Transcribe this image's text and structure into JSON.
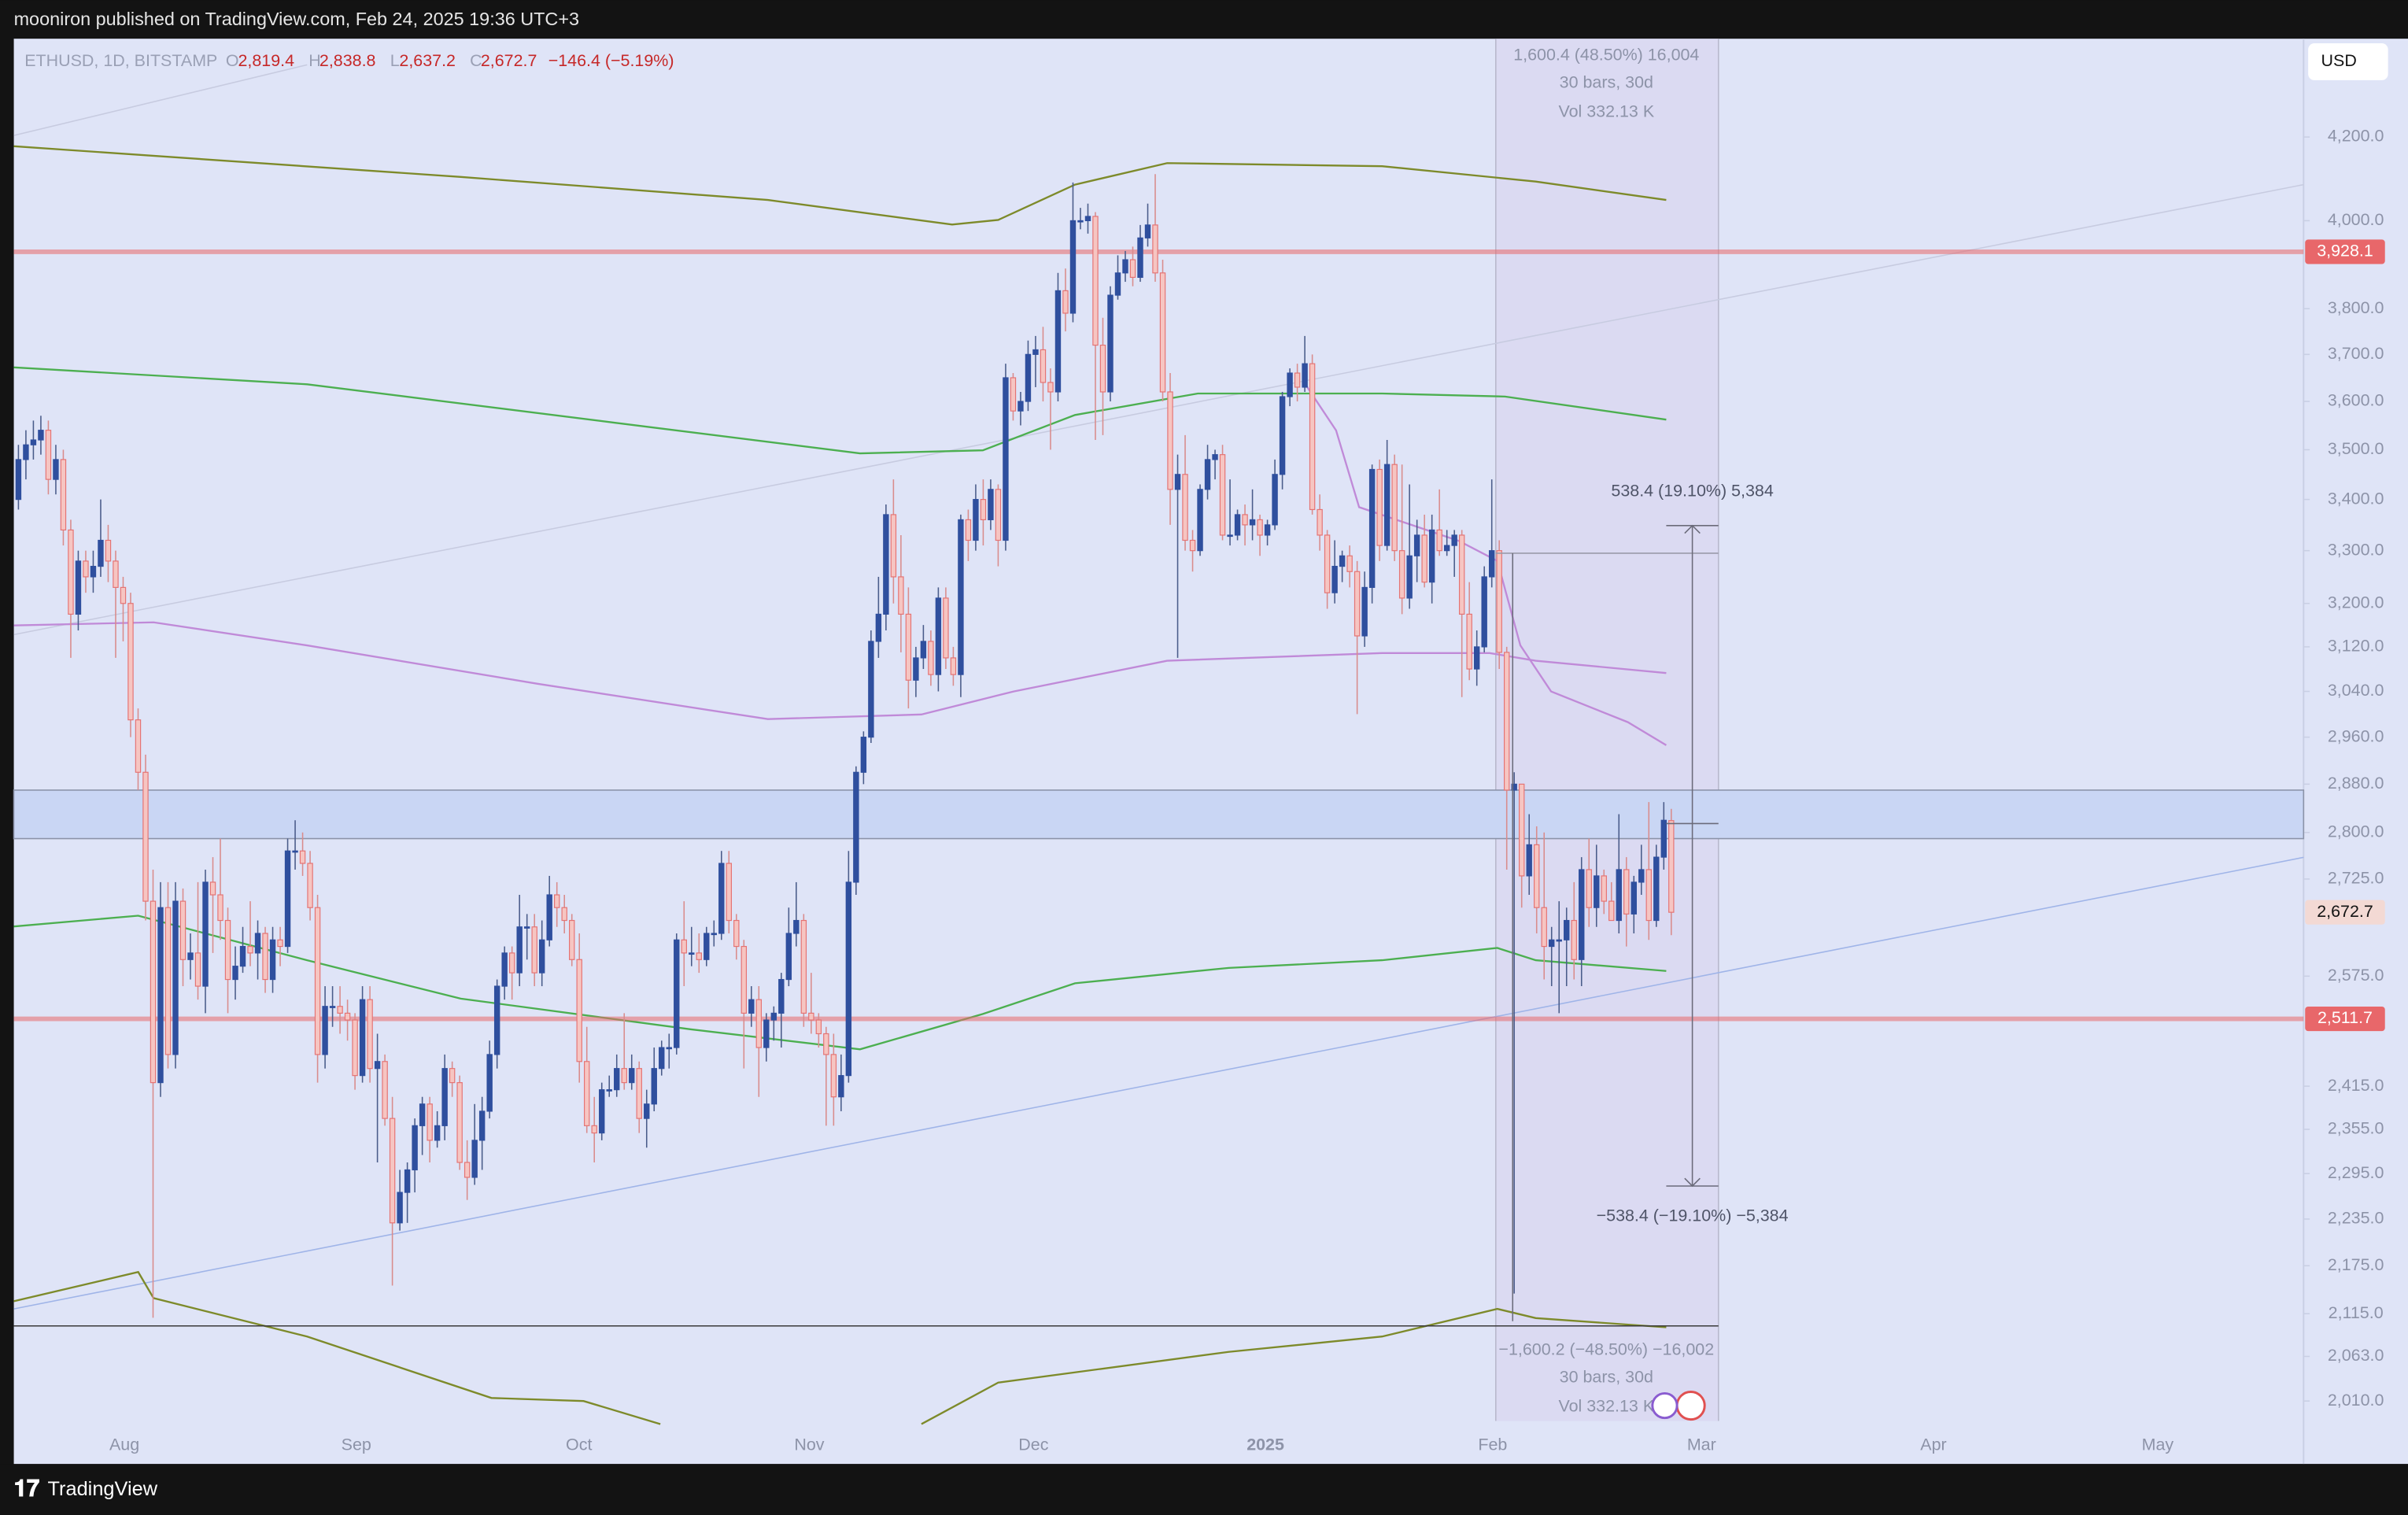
{
  "header": {
    "title": "mooniron published on TradingView.com, Feb 24, 2025 19:36 UTC+3"
  },
  "legend": {
    "symbol": "ETHUSD, 1D, BITSTAMP",
    "o_label": "O",
    "open": "2,819.4",
    "h_label": "H",
    "high": "2,838.8",
    "l_label": "L",
    "low": "2,637.2",
    "c_label": "C",
    "close": "2,672.7",
    "change": "−146.4 (−5.19%)"
  },
  "currency_button": "USD",
  "price_axis": {
    "ticks": [
      {
        "value": 4200,
        "label": "4,200.0"
      },
      {
        "value": 4000,
        "label": "4,000.0"
      },
      {
        "value": 3800,
        "label": "3,800.0"
      },
      {
        "value": 3700,
        "label": "3,700.0"
      },
      {
        "value": 3600,
        "label": "3,600.0"
      },
      {
        "value": 3500,
        "label": "3,500.0"
      },
      {
        "value": 3400,
        "label": "3,400.0"
      },
      {
        "value": 3300,
        "label": "3,300.0"
      },
      {
        "value": 3200,
        "label": "3,200.0"
      },
      {
        "value": 3120,
        "label": "3,120.0"
      },
      {
        "value": 3040,
        "label": "3,040.0"
      },
      {
        "value": 2960,
        "label": "2,960.0"
      },
      {
        "value": 2880,
        "label": "2,880.0"
      },
      {
        "value": 2800,
        "label": "2,800.0"
      },
      {
        "value": 2725,
        "label": "2,725.0"
      },
      {
        "value": 2575,
        "label": "2,575.0"
      },
      {
        "value": 2415,
        "label": "2,415.0"
      },
      {
        "value": 2355,
        "label": "2,355.0"
      },
      {
        "value": 2295,
        "label": "2,295.0"
      },
      {
        "value": 2235,
        "label": "2,235.0"
      },
      {
        "value": 2175,
        "label": "2,175.0"
      },
      {
        "value": 2115,
        "label": "2,115.0"
      },
      {
        "value": 2063,
        "label": "2,063.0"
      },
      {
        "value": 2010,
        "label": "2,010.0"
      }
    ],
    "badges": [
      {
        "value": 3928.1,
        "label": "3,928.1",
        "color": "#e8676a"
      },
      {
        "value": 2672.7,
        "label": "2,672.7",
        "color": "#f3d9d4"
      },
      {
        "value": 2511.7,
        "label": "2,511.7",
        "color": "#e8676a"
      }
    ]
  },
  "zone": [
    2870,
    2790
  ],
  "base_line": 2100,
  "time_axis": {
    "labels": [
      "Aug",
      "Sep",
      "Oct",
      "Nov",
      "Dec",
      "2025",
      "Feb",
      "Mar",
      "Apr",
      "May"
    ]
  },
  "annotations": {
    "top_range": "1,600.4 (48.50%) 16,004",
    "top_bars": "30 bars, 30d",
    "top_vol": "Vol 332.13 K",
    "up_move": "538.4 (19.10%) 5,384",
    "down_move": "−538.4 (−19.10%) −5,384",
    "bottom_range": "−1,600.2 (−48.50%) −16,002",
    "bottom_bars": "30 bars, 30d",
    "bottom_vol": "Vol 332.13 K"
  },
  "footer": {
    "brand": "TradingView"
  },
  "candles": [
    [
      3400,
      3510,
      3380,
      3480
    ],
    [
      3480,
      3540,
      3440,
      3510
    ],
    [
      3510,
      3560,
      3480,
      3520
    ],
    [
      3520,
      3570,
      3490,
      3540
    ],
    [
      3540,
      3560,
      3410,
      3440
    ],
    [
      3440,
      3510,
      3410,
      3480
    ],
    [
      3480,
      3500,
      3310,
      3340
    ],
    [
      3340,
      3360,
      3100,
      3180
    ],
    [
      3180,
      3300,
      3150,
      3280
    ],
    [
      3280,
      3300,
      3220,
      3250
    ],
    [
      3250,
      3300,
      3220,
      3270
    ],
    [
      3270,
      3400,
      3250,
      3320
    ],
    [
      3320,
      3350,
      3240,
      3280
    ],
    [
      3280,
      3300,
      3100,
      3230
    ],
    [
      3230,
      3250,
      3130,
      3200
    ],
    [
      3200,
      3220,
      2960,
      2990
    ],
    [
      2990,
      3010,
      2870,
      2900
    ],
    [
      2900,
      2930,
      2660,
      2690
    ],
    [
      2690,
      2740,
      2110,
      2420
    ],
    [
      2420,
      2720,
      2400,
      2680
    ],
    [
      2680,
      2720,
      2440,
      2460
    ],
    [
      2460,
      2720,
      2440,
      2690
    ],
    [
      2690,
      2710,
      2560,
      2600
    ],
    [
      2600,
      2640,
      2570,
      2610
    ],
    [
      2610,
      2720,
      2540,
      2560
    ],
    [
      2560,
      2740,
      2520,
      2720
    ],
    [
      2720,
      2760,
      2610,
      2700
    ],
    [
      2700,
      2790,
      2630,
      2660
    ],
    [
      2660,
      2680,
      2520,
      2570
    ],
    [
      2570,
      2620,
      2540,
      2590
    ],
    [
      2590,
      2650,
      2580,
      2620
    ],
    [
      2620,
      2690,
      2590,
      2610
    ],
    [
      2610,
      2660,
      2570,
      2640
    ],
    [
      2640,
      2650,
      2550,
      2570
    ],
    [
      2570,
      2650,
      2550,
      2630
    ],
    [
      2630,
      2650,
      2590,
      2620
    ],
    [
      2620,
      2790,
      2610,
      2770
    ],
    [
      2770,
      2820,
      2740,
      2770
    ],
    [
      2770,
      2800,
      2730,
      2750
    ],
    [
      2750,
      2770,
      2660,
      2680
    ],
    [
      2680,
      2700,
      2420,
      2460
    ],
    [
      2460,
      2560,
      2440,
      2530
    ],
    [
      2530,
      2560,
      2500,
      2530
    ],
    [
      2530,
      2560,
      2490,
      2520
    ],
    [
      2520,
      2540,
      2480,
      2510
    ],
    [
      2510,
      2520,
      2410,
      2430
    ],
    [
      2430,
      2560,
      2420,
      2540
    ],
    [
      2540,
      2560,
      2420,
      2440
    ],
    [
      2440,
      2490,
      2310,
      2450
    ],
    [
      2450,
      2460,
      2360,
      2370
    ],
    [
      2370,
      2400,
      2150,
      2230
    ],
    [
      2230,
      2300,
      2220,
      2270
    ],
    [
      2270,
      2310,
      2230,
      2300
    ],
    [
      2300,
      2370,
      2270,
      2360
    ],
    [
      2360,
      2400,
      2320,
      2390
    ],
    [
      2390,
      2400,
      2310,
      2340
    ],
    [
      2340,
      2380,
      2330,
      2360
    ],
    [
      2360,
      2460,
      2340,
      2440
    ],
    [
      2440,
      2450,
      2400,
      2420
    ],
    [
      2420,
      2430,
      2300,
      2310
    ],
    [
      2310,
      2340,
      2260,
      2290
    ],
    [
      2290,
      2390,
      2280,
      2340
    ],
    [
      2340,
      2400,
      2300,
      2380
    ],
    [
      2380,
      2480,
      2370,
      2460
    ],
    [
      2460,
      2570,
      2440,
      2560
    ],
    [
      2560,
      2620,
      2540,
      2610
    ],
    [
      2610,
      2620,
      2540,
      2580
    ],
    [
      2580,
      2700,
      2560,
      2650
    ],
    [
      2650,
      2670,
      2600,
      2650
    ],
    [
      2650,
      2670,
      2560,
      2580
    ],
    [
      2580,
      2660,
      2560,
      2630
    ],
    [
      2630,
      2730,
      2620,
      2700
    ],
    [
      2700,
      2720,
      2650,
      2680
    ],
    [
      2680,
      2700,
      2640,
      2660
    ],
    [
      2660,
      2670,
      2590,
      2600
    ],
    [
      2600,
      2640,
      2420,
      2450
    ],
    [
      2450,
      2500,
      2350,
      2360
    ],
    [
      2360,
      2400,
      2310,
      2350
    ],
    [
      2350,
      2420,
      2340,
      2410
    ],
    [
      2410,
      2430,
      2400,
      2410
    ],
    [
      2410,
      2460,
      2400,
      2440
    ],
    [
      2440,
      2520,
      2410,
      2420
    ],
    [
      2420,
      2460,
      2410,
      2440
    ],
    [
      2440,
      2450,
      2350,
      2370
    ],
    [
      2370,
      2410,
      2330,
      2390
    ],
    [
      2390,
      2470,
      2380,
      2440
    ],
    [
      2440,
      2480,
      2430,
      2470
    ],
    [
      2470,
      2490,
      2440,
      2470
    ],
    [
      2470,
      2640,
      2460,
      2630
    ],
    [
      2630,
      2690,
      2560,
      2610
    ],
    [
      2610,
      2650,
      2590,
      2610
    ],
    [
      2610,
      2640,
      2580,
      2600
    ],
    [
      2600,
      2650,
      2590,
      2640
    ],
    [
      2640,
      2660,
      2620,
      2640
    ],
    [
      2640,
      2770,
      2630,
      2750
    ],
    [
      2750,
      2770,
      2640,
      2660
    ],
    [
      2660,
      2670,
      2600,
      2620
    ],
    [
      2620,
      2630,
      2440,
      2520
    ],
    [
      2520,
      2560,
      2500,
      2540
    ],
    [
      2540,
      2560,
      2400,
      2470
    ],
    [
      2470,
      2520,
      2450,
      2510
    ],
    [
      2510,
      2530,
      2480,
      2520
    ],
    [
      2520,
      2580,
      2470,
      2570
    ],
    [
      2570,
      2680,
      2560,
      2640
    ],
    [
      2640,
      2720,
      2620,
      2660
    ],
    [
      2660,
      2670,
      2500,
      2520
    ],
    [
      2520,
      2580,
      2490,
      2510
    ],
    [
      2510,
      2520,
      2470,
      2490
    ],
    [
      2490,
      2500,
      2360,
      2460
    ],
    [
      2460,
      2490,
      2360,
      2400
    ],
    [
      2400,
      2460,
      2380,
      2430
    ],
    [
      2430,
      2770,
      2420,
      2720
    ],
    [
      2720,
      2910,
      2700,
      2900
    ],
    [
      2900,
      2970,
      2880,
      2960
    ],
    [
      2960,
      3150,
      2950,
      3130
    ],
    [
      3130,
      3250,
      3100,
      3180
    ],
    [
      3180,
      3390,
      3150,
      3370
    ],
    [
      3370,
      3440,
      3200,
      3250
    ],
    [
      3250,
      3330,
      3110,
      3180
    ],
    [
      3180,
      3230,
      3010,
      3060
    ],
    [
      3060,
      3120,
      3030,
      3100
    ],
    [
      3100,
      3160,
      3080,
      3130
    ],
    [
      3130,
      3150,
      3050,
      3070
    ],
    [
      3070,
      3230,
      3040,
      3210
    ],
    [
      3210,
      3230,
      3080,
      3100
    ],
    [
      3100,
      3120,
      3050,
      3070
    ],
    [
      3070,
      3370,
      3030,
      3360
    ],
    [
      3360,
      3380,
      3280,
      3320
    ],
    [
      3320,
      3430,
      3300,
      3400
    ],
    [
      3400,
      3440,
      3310,
      3360
    ],
    [
      3360,
      3440,
      3340,
      3420
    ],
    [
      3420,
      3430,
      3270,
      3320
    ],
    [
      3320,
      3680,
      3300,
      3650
    ],
    [
      3650,
      3660,
      3560,
      3580
    ],
    [
      3580,
      3620,
      3550,
      3600
    ],
    [
      3600,
      3730,
      3580,
      3700
    ],
    [
      3700,
      3740,
      3630,
      3710
    ],
    [
      3710,
      3760,
      3600,
      3640
    ],
    [
      3640,
      3670,
      3500,
      3620
    ],
    [
      3620,
      3880,
      3600,
      3840
    ],
    [
      3840,
      3890,
      3750,
      3790
    ],
    [
      3790,
      4090,
      3770,
      4000
    ],
    [
      4000,
      4030,
      3980,
      4000
    ],
    [
      4000,
      4040,
      3970,
      4010
    ],
    [
      4010,
      4020,
      3520,
      3720
    ],
    [
      3720,
      3780,
      3530,
      3620
    ],
    [
      3620,
      3850,
      3600,
      3830
    ],
    [
      3830,
      3920,
      3820,
      3880
    ],
    [
      3880,
      3930,
      3860,
      3910
    ],
    [
      3910,
      3940,
      3850,
      3870
    ],
    [
      3870,
      3990,
      3860,
      3960
    ],
    [
      3960,
      4040,
      3940,
      3990
    ],
    [
      3990,
      4110,
      3860,
      3880
    ],
    [
      3880,
      3910,
      3600,
      3620
    ],
    [
      3620,
      3660,
      3350,
      3420
    ],
    [
      3420,
      3490,
      3100,
      3450
    ],
    [
      3450,
      3530,
      3300,
      3320
    ],
    [
      3320,
      3340,
      3260,
      3300
    ],
    [
      3300,
      3430,
      3290,
      3420
    ],
    [
      3420,
      3510,
      3400,
      3480
    ],
    [
      3480,
      3500,
      3440,
      3490
    ],
    [
      3490,
      3510,
      3320,
      3330
    ],
    [
      3330,
      3440,
      3310,
      3330
    ],
    [
      3330,
      3380,
      3320,
      3370
    ],
    [
      3370,
      3390,
      3310,
      3350
    ],
    [
      3350,
      3420,
      3320,
      3360
    ],
    [
      3360,
      3370,
      3290,
      3330
    ],
    [
      3330,
      3360,
      3310,
      3350
    ],
    [
      3350,
      3480,
      3340,
      3450
    ],
    [
      3450,
      3620,
      3420,
      3610
    ],
    [
      3610,
      3670,
      3590,
      3660
    ],
    [
      3660,
      3680,
      3600,
      3630
    ],
    [
      3630,
      3740,
      3620,
      3680
    ],
    [
      3680,
      3700,
      3370,
      3380
    ],
    [
      3380,
      3410,
      3300,
      3330
    ],
    [
      3330,
      3340,
      3190,
      3220
    ],
    [
      3220,
      3320,
      3200,
      3270
    ],
    [
      3270,
      3300,
      3240,
      3290
    ],
    [
      3290,
      3310,
      3230,
      3260
    ],
    [
      3260,
      3280,
      3000,
      3140
    ],
    [
      3140,
      3260,
      3120,
      3230
    ],
    [
      3230,
      3470,
      3200,
      3460
    ],
    [
      3460,
      3480,
      3280,
      3310
    ],
    [
      3310,
      3520,
      3300,
      3470
    ],
    [
      3470,
      3490,
      3280,
      3300
    ],
    [
      3300,
      3470,
      3180,
      3210
    ],
    [
      3210,
      3430,
      3190,
      3290
    ],
    [
      3290,
      3360,
      3240,
      3330
    ],
    [
      3330,
      3370,
      3230,
      3240
    ],
    [
      3240,
      3370,
      3200,
      3340
    ],
    [
      3340,
      3420,
      3290,
      3300
    ],
    [
      3300,
      3340,
      3290,
      3310
    ],
    [
      3310,
      3340,
      3250,
      3330
    ],
    [
      3330,
      3340,
      3030,
      3180
    ],
    [
      3180,
      3240,
      3060,
      3080
    ],
    [
      3080,
      3150,
      3050,
      3120
    ],
    [
      3120,
      3270,
      3110,
      3250
    ],
    [
      3250,
      3440,
      3230,
      3300
    ],
    [
      3300,
      3320,
      3080,
      3110
    ],
    [
      3110,
      3120,
      2740,
      2870
    ],
    [
      2870,
      2900,
      2140,
      2880
    ],
    [
      2880,
      2880,
      2680,
      2730
    ],
    [
      2730,
      2830,
      2700,
      2780
    ],
    [
      2780,
      2810,
      2640,
      2680
    ],
    [
      2680,
      2800,
      2570,
      2620
    ],
    [
      2620,
      2650,
      2560,
      2630
    ],
    [
      2630,
      2690,
      2520,
      2630
    ],
    [
      2630,
      2680,
      2560,
      2660
    ],
    [
      2660,
      2720,
      2570,
      2600
    ],
    [
      2600,
      2760,
      2560,
      2740
    ],
    [
      2740,
      2790,
      2650,
      2680
    ],
    [
      2680,
      2780,
      2650,
      2730
    ],
    [
      2730,
      2740,
      2670,
      2690
    ],
    [
      2690,
      2720,
      2660,
      2660
    ],
    [
      2660,
      2830,
      2640,
      2740
    ],
    [
      2740,
      2760,
      2620,
      2670
    ],
    [
      2670,
      2730,
      2640,
      2720
    ],
    [
      2720,
      2780,
      2700,
      2740
    ],
    [
      2740,
      2850,
      2630,
      2660
    ],
    [
      2660,
      2780,
      2650,
      2760
    ],
    [
      2760,
      2850,
      2740,
      2820
    ],
    [
      2819.4,
      2838.8,
      2637.2,
      2672.7
    ]
  ]
}
